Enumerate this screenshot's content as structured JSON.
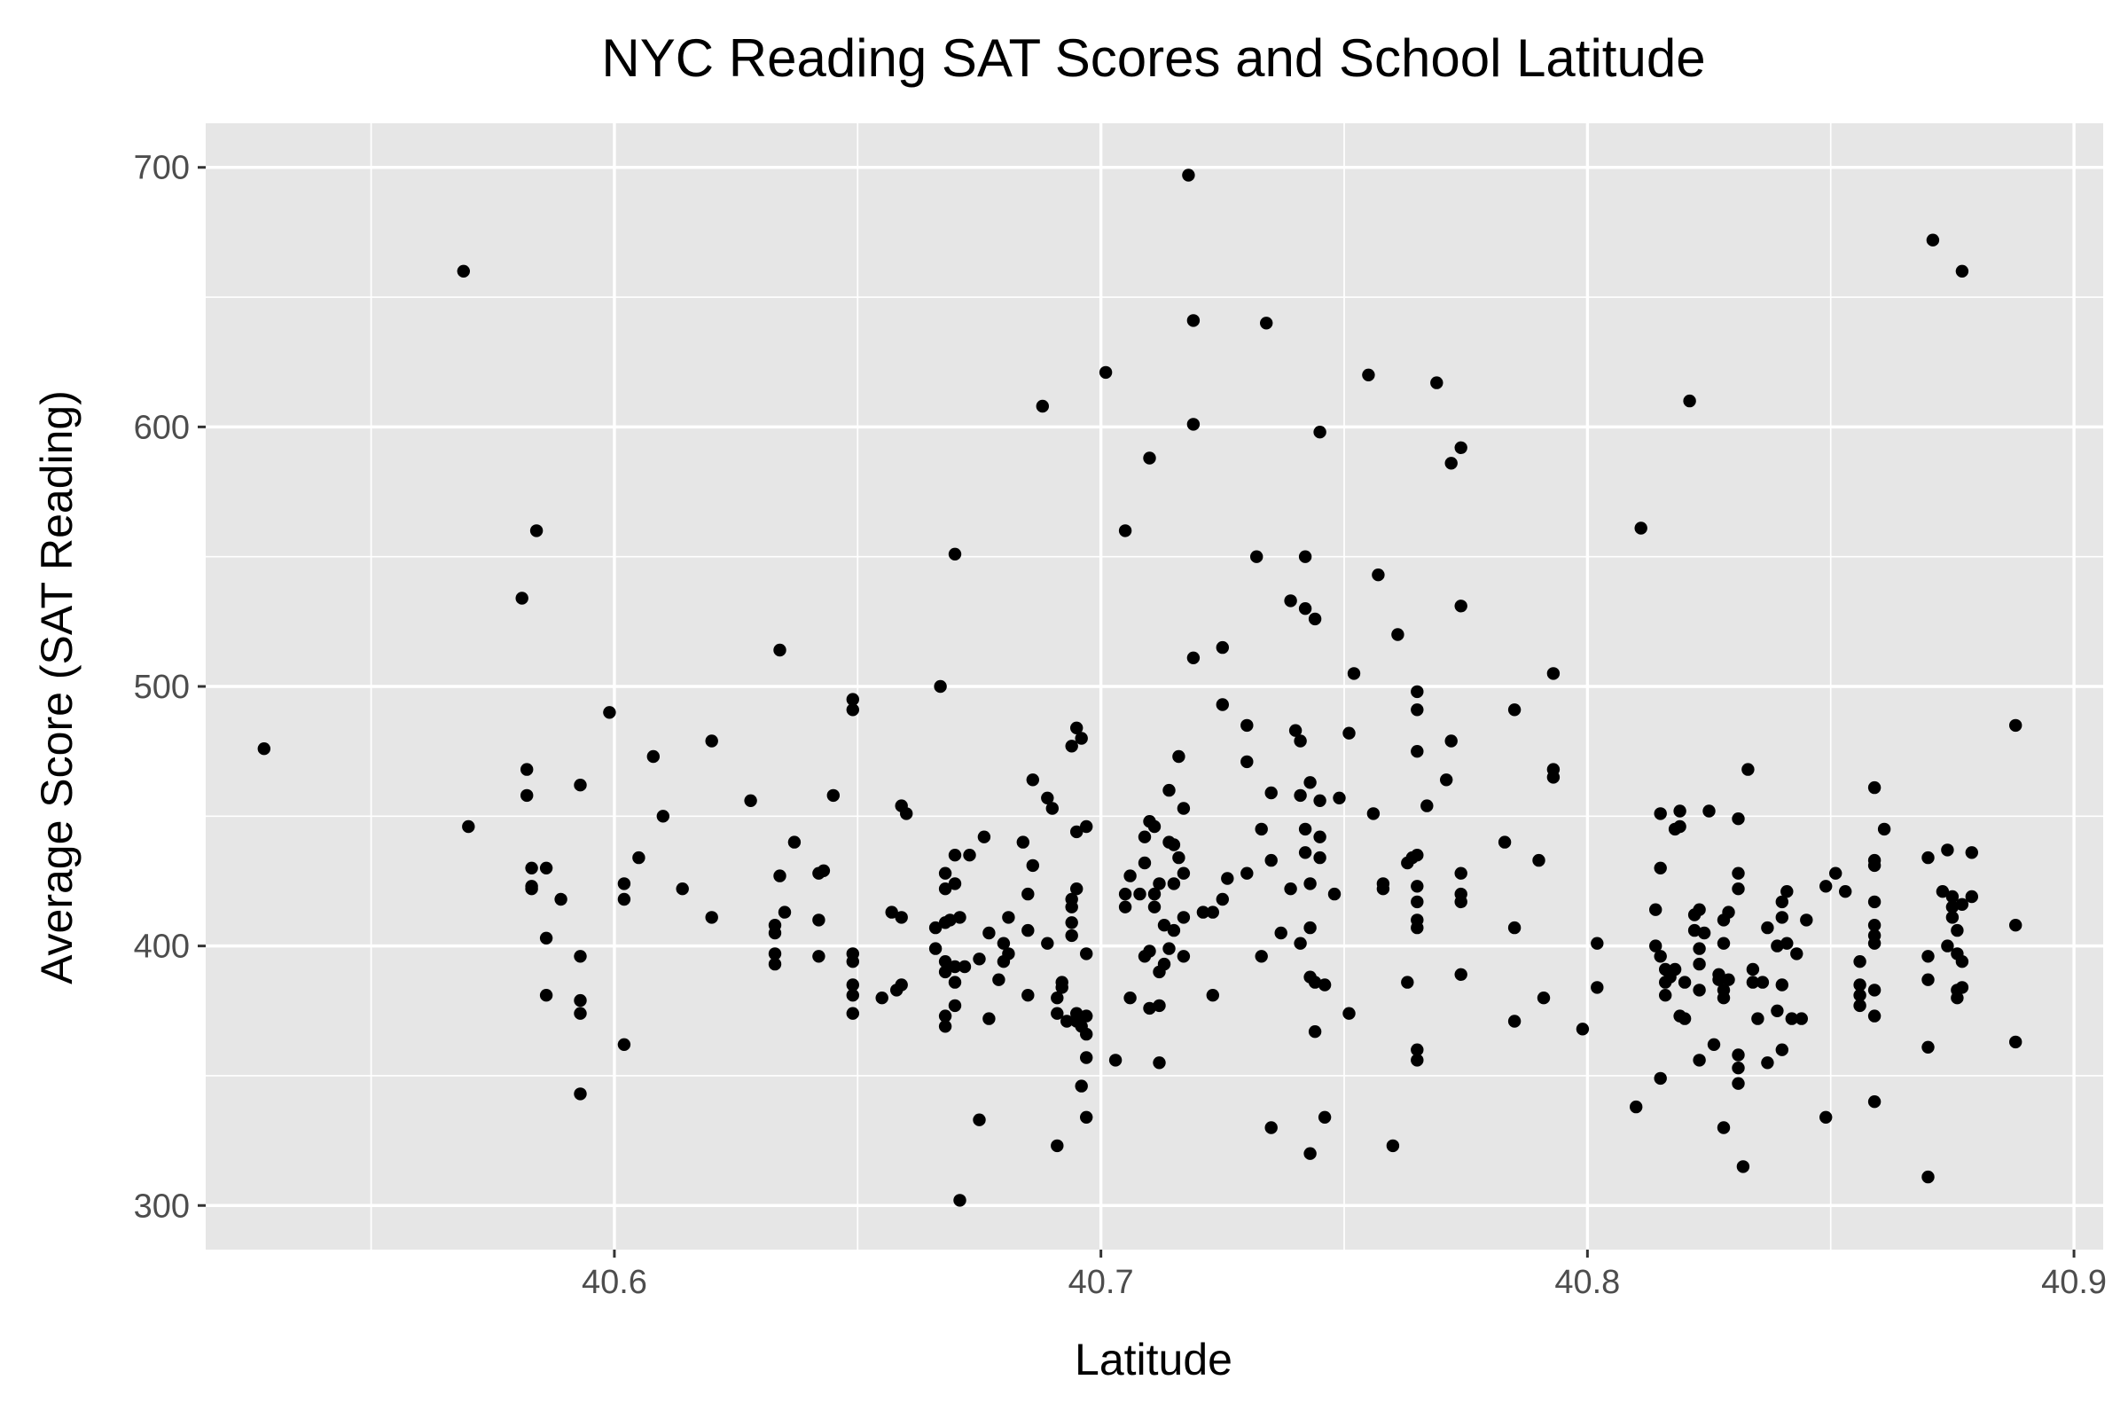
{
  "chart_data": {
    "type": "scatter",
    "title": "NYC Reading SAT Scores and School Latitude",
    "xlabel": "Latitude",
    "ylabel": "Average Score (SAT Reading)",
    "xlim": [
      40.516,
      40.906
    ],
    "ylim": [
      283,
      717
    ],
    "x_ticks": [
      "40.6",
      "40.7",
      "40.8",
      "40.9"
    ],
    "x_tick_values": [
      40.6,
      40.7,
      40.8,
      40.9
    ],
    "y_ticks": [
      "300",
      "400",
      "500",
      "600",
      "700"
    ],
    "y_tick_values": [
      300,
      400,
      500,
      600,
      700
    ],
    "grid": true,
    "panel_background": "#e6e6e6",
    "point_color": "#000000",
    "points": [
      [
        40.528,
        476
      ],
      [
        40.569,
        660
      ],
      [
        40.57,
        446
      ],
      [
        40.581,
        534
      ],
      [
        40.582,
        468
      ],
      [
        40.582,
        458
      ],
      [
        40.583,
        430
      ],
      [
        40.583,
        422
      ],
      [
        40.583,
        423
      ],
      [
        40.584,
        560
      ],
      [
        40.586,
        430
      ],
      [
        40.586,
        403
      ],
      [
        40.586,
        381
      ],
      [
        40.589,
        418
      ],
      [
        40.593,
        462
      ],
      [
        40.593,
        396
      ],
      [
        40.593,
        379
      ],
      [
        40.593,
        374
      ],
      [
        40.593,
        343
      ],
      [
        40.599,
        490
      ],
      [
        40.602,
        424
      ],
      [
        40.602,
        418
      ],
      [
        40.602,
        362
      ],
      [
        40.605,
        434
      ],
      [
        40.608,
        473
      ],
      [
        40.61,
        450
      ],
      [
        40.614,
        422
      ],
      [
        40.62,
        479
      ],
      [
        40.62,
        411
      ],
      [
        40.628,
        456
      ],
      [
        40.633,
        408
      ],
      [
        40.633,
        405
      ],
      [
        40.633,
        397
      ],
      [
        40.633,
        393
      ],
      [
        40.634,
        514
      ],
      [
        40.634,
        427
      ],
      [
        40.635,
        413
      ],
      [
        40.637,
        440
      ],
      [
        40.642,
        428
      ],
      [
        40.642,
        410
      ],
      [
        40.642,
        396
      ],
      [
        40.643,
        429
      ],
      [
        40.645,
        458
      ],
      [
        40.649,
        495
      ],
      [
        40.649,
        491
      ],
      [
        40.649,
        397
      ],
      [
        40.649,
        394
      ],
      [
        40.649,
        385
      ],
      [
        40.649,
        381
      ],
      [
        40.649,
        374
      ],
      [
        40.655,
        380
      ],
      [
        40.657,
        413
      ],
      [
        40.658,
        383
      ],
      [
        40.659,
        411
      ],
      [
        40.659,
        385
      ],
      [
        40.659,
        454
      ],
      [
        40.66,
        451
      ],
      [
        40.666,
        407
      ],
      [
        40.666,
        399
      ],
      [
        40.667,
        500
      ],
      [
        40.668,
        428
      ],
      [
        40.668,
        422
      ],
      [
        40.668,
        409
      ],
      [
        40.668,
        394
      ],
      [
        40.668,
        390
      ],
      [
        40.668,
        373
      ],
      [
        40.668,
        369
      ],
      [
        40.669,
        410
      ],
      [
        40.67,
        551
      ],
      [
        40.67,
        435
      ],
      [
        40.67,
        424
      ],
      [
        40.67,
        392
      ],
      [
        40.67,
        386
      ],
      [
        40.67,
        377
      ],
      [
        40.671,
        302
      ],
      [
        40.671,
        411
      ],
      [
        40.672,
        392
      ],
      [
        40.673,
        435
      ],
      [
        40.675,
        395
      ],
      [
        40.675,
        333
      ],
      [
        40.676,
        442
      ],
      [
        40.677,
        405
      ],
      [
        40.677,
        372
      ],
      [
        40.679,
        387
      ],
      [
        40.68,
        401
      ],
      [
        40.68,
        394
      ],
      [
        40.681,
        397
      ],
      [
        40.681,
        411
      ],
      [
        40.684,
        440
      ],
      [
        40.685,
        420
      ],
      [
        40.685,
        406
      ],
      [
        40.685,
        381
      ],
      [
        40.686,
        464
      ],
      [
        40.686,
        431
      ],
      [
        40.688,
        608
      ],
      [
        40.689,
        401
      ],
      [
        40.689,
        457
      ],
      [
        40.69,
        453
      ],
      [
        40.691,
        323
      ],
      [
        40.691,
        380
      ],
      [
        40.691,
        374
      ],
      [
        40.692,
        384
      ],
      [
        40.692,
        386
      ],
      [
        40.693,
        371
      ],
      [
        40.694,
        418
      ],
      [
        40.694,
        415
      ],
      [
        40.694,
        409
      ],
      [
        40.694,
        404
      ],
      [
        40.694,
        477
      ],
      [
        40.695,
        444
      ],
      [
        40.695,
        422
      ],
      [
        40.695,
        484
      ],
      [
        40.695,
        371
      ],
      [
        40.695,
        374
      ],
      [
        40.696,
        480
      ],
      [
        40.696,
        346
      ],
      [
        40.696,
        369
      ],
      [
        40.697,
        366
      ],
      [
        40.697,
        357
      ],
      [
        40.697,
        373
      ],
      [
        40.697,
        397
      ],
      [
        40.697,
        334
      ],
      [
        40.697,
        446
      ],
      [
        40.701,
        621
      ],
      [
        40.703,
        356
      ],
      [
        40.705,
        560
      ],
      [
        40.705,
        415
      ],
      [
        40.705,
        420
      ],
      [
        40.706,
        380
      ],
      [
        40.706,
        427
      ],
      [
        40.708,
        420
      ],
      [
        40.709,
        432
      ],
      [
        40.709,
        442
      ],
      [
        40.709,
        396
      ],
      [
        40.71,
        588
      ],
      [
        40.71,
        448
      ],
      [
        40.71,
        398
      ],
      [
        40.71,
        376
      ],
      [
        40.711,
        415
      ],
      [
        40.711,
        420
      ],
      [
        40.711,
        446
      ],
      [
        40.712,
        424
      ],
      [
        40.712,
        390
      ],
      [
        40.712,
        355
      ],
      [
        40.712,
        377
      ],
      [
        40.713,
        393
      ],
      [
        40.713,
        408
      ],
      [
        40.714,
        460
      ],
      [
        40.714,
        440
      ],
      [
        40.714,
        399
      ],
      [
        40.715,
        406
      ],
      [
        40.715,
        439
      ],
      [
        40.715,
        424
      ],
      [
        40.716,
        473
      ],
      [
        40.716,
        434
      ],
      [
        40.717,
        453
      ],
      [
        40.717,
        428
      ],
      [
        40.717,
        411
      ],
      [
        40.717,
        396
      ],
      [
        40.718,
        697
      ],
      [
        40.719,
        641
      ],
      [
        40.719,
        601
      ],
      [
        40.719,
        511
      ],
      [
        40.721,
        413
      ],
      [
        40.723,
        413
      ],
      [
        40.723,
        381
      ],
      [
        40.725,
        515
      ],
      [
        40.725,
        493
      ],
      [
        40.725,
        418
      ],
      [
        40.726,
        426
      ],
      [
        40.73,
        485
      ],
      [
        40.73,
        471
      ],
      [
        40.73,
        428
      ],
      [
        40.732,
        550
      ],
      [
        40.733,
        445
      ],
      [
        40.733,
        396
      ],
      [
        40.734,
        640
      ],
      [
        40.735,
        330
      ],
      [
        40.735,
        459
      ],
      [
        40.735,
        433
      ],
      [
        40.737,
        405
      ],
      [
        40.739,
        533
      ],
      [
        40.739,
        422
      ],
      [
        40.74,
        483
      ],
      [
        40.741,
        401
      ],
      [
        40.741,
        479
      ],
      [
        40.741,
        458
      ],
      [
        40.742,
        550
      ],
      [
        40.742,
        530
      ],
      [
        40.742,
        445
      ],
      [
        40.742,
        436
      ],
      [
        40.743,
        424
      ],
      [
        40.743,
        407
      ],
      [
        40.743,
        388
      ],
      [
        40.743,
        320
      ],
      [
        40.743,
        463
      ],
      [
        40.744,
        526
      ],
      [
        40.744,
        367
      ],
      [
        40.744,
        386
      ],
      [
        40.745,
        598
      ],
      [
        40.745,
        456
      ],
      [
        40.745,
        442
      ],
      [
        40.745,
        434
      ],
      [
        40.746,
        385
      ],
      [
        40.746,
        334
      ],
      [
        40.748,
        420
      ],
      [
        40.749,
        457
      ],
      [
        40.751,
        482
      ],
      [
        40.751,
        374
      ],
      [
        40.752,
        505
      ],
      [
        40.755,
        620
      ],
      [
        40.756,
        451
      ],
      [
        40.757,
        543
      ],
      [
        40.758,
        424
      ],
      [
        40.758,
        422
      ],
      [
        40.76,
        323
      ],
      [
        40.761,
        520
      ],
      [
        40.763,
        386
      ],
      [
        40.763,
        432
      ],
      [
        40.764,
        434
      ],
      [
        40.765,
        498
      ],
      [
        40.765,
        491
      ],
      [
        40.765,
        475
      ],
      [
        40.765,
        435
      ],
      [
        40.765,
        423
      ],
      [
        40.765,
        417
      ],
      [
        40.765,
        410
      ],
      [
        40.765,
        407
      ],
      [
        40.765,
        360
      ],
      [
        40.765,
        356
      ],
      [
        40.767,
        454
      ],
      [
        40.769,
        617
      ],
      [
        40.771,
        464
      ],
      [
        40.772,
        586
      ],
      [
        40.772,
        479
      ],
      [
        40.774,
        592
      ],
      [
        40.774,
        531
      ],
      [
        40.774,
        428
      ],
      [
        40.774,
        420
      ],
      [
        40.774,
        417
      ],
      [
        40.774,
        389
      ],
      [
        40.783,
        440
      ],
      [
        40.785,
        491
      ],
      [
        40.785,
        407
      ],
      [
        40.785,
        371
      ],
      [
        40.79,
        433
      ],
      [
        40.791,
        380
      ],
      [
        40.793,
        505
      ],
      [
        40.793,
        465
      ],
      [
        40.793,
        468
      ],
      [
        40.799,
        368
      ],
      [
        40.802,
        401
      ],
      [
        40.802,
        384
      ],
      [
        40.81,
        338
      ],
      [
        40.811,
        561
      ],
      [
        40.814,
        400
      ],
      [
        40.814,
        414
      ],
      [
        40.815,
        451
      ],
      [
        40.815,
        430
      ],
      [
        40.815,
        396
      ],
      [
        40.815,
        349
      ],
      [
        40.816,
        391
      ],
      [
        40.816,
        386
      ],
      [
        40.816,
        381
      ],
      [
        40.817,
        388
      ],
      [
        40.818,
        445
      ],
      [
        40.818,
        391
      ],
      [
        40.819,
        446
      ],
      [
        40.819,
        373
      ],
      [
        40.819,
        452
      ],
      [
        40.82,
        372
      ],
      [
        40.82,
        386
      ],
      [
        40.821,
        610
      ],
      [
        40.822,
        412
      ],
      [
        40.822,
        406
      ],
      [
        40.823,
        414
      ],
      [
        40.823,
        399
      ],
      [
        40.823,
        393
      ],
      [
        40.823,
        383
      ],
      [
        40.823,
        356
      ],
      [
        40.824,
        405
      ],
      [
        40.825,
        452
      ],
      [
        40.826,
        362
      ],
      [
        40.827,
        387
      ],
      [
        40.827,
        389
      ],
      [
        40.828,
        410
      ],
      [
        40.828,
        401
      ],
      [
        40.828,
        383
      ],
      [
        40.828,
        380
      ],
      [
        40.828,
        330
      ],
      [
        40.829,
        413
      ],
      [
        40.829,
        387
      ],
      [
        40.831,
        449
      ],
      [
        40.831,
        428
      ],
      [
        40.831,
        422
      ],
      [
        40.831,
        358
      ],
      [
        40.831,
        353
      ],
      [
        40.831,
        347
      ],
      [
        40.832,
        315
      ],
      [
        40.833,
        468
      ],
      [
        40.834,
        391
      ],
      [
        40.834,
        386
      ],
      [
        40.835,
        372
      ],
      [
        40.836,
        386
      ],
      [
        40.837,
        407
      ],
      [
        40.837,
        355
      ],
      [
        40.839,
        400
      ],
      [
        40.839,
        375
      ],
      [
        40.84,
        417
      ],
      [
        40.84,
        411
      ],
      [
        40.84,
        385
      ],
      [
        40.84,
        360
      ],
      [
        40.841,
        421
      ],
      [
        40.841,
        401
      ],
      [
        40.842,
        372
      ],
      [
        40.843,
        397
      ],
      [
        40.844,
        372
      ],
      [
        40.845,
        410
      ],
      [
        40.849,
        423
      ],
      [
        40.849,
        334
      ],
      [
        40.851,
        428
      ],
      [
        40.853,
        421
      ],
      [
        40.856,
        394
      ],
      [
        40.856,
        385
      ],
      [
        40.856,
        381
      ],
      [
        40.856,
        377
      ],
      [
        40.859,
        461
      ],
      [
        40.859,
        433
      ],
      [
        40.859,
        431
      ],
      [
        40.859,
        417
      ],
      [
        40.859,
        408
      ],
      [
        40.859,
        404
      ],
      [
        40.859,
        401
      ],
      [
        40.859,
        383
      ],
      [
        40.859,
        373
      ],
      [
        40.859,
        340
      ],
      [
        40.861,
        445
      ],
      [
        40.87,
        434
      ],
      [
        40.87,
        396
      ],
      [
        40.87,
        387
      ],
      [
        40.87,
        361
      ],
      [
        40.87,
        311
      ],
      [
        40.871,
        672
      ],
      [
        40.873,
        421
      ],
      [
        40.874,
        400
      ],
      [
        40.874,
        437
      ],
      [
        40.875,
        419
      ],
      [
        40.875,
        411
      ],
      [
        40.875,
        415
      ],
      [
        40.876,
        383
      ],
      [
        40.876,
        380
      ],
      [
        40.876,
        397
      ],
      [
        40.876,
        406
      ],
      [
        40.877,
        660
      ],
      [
        40.877,
        416
      ],
      [
        40.877,
        384
      ],
      [
        40.877,
        394
      ],
      [
        40.879,
        419
      ],
      [
        40.879,
        436
      ],
      [
        40.888,
        485
      ],
      [
        40.888,
        408
      ],
      [
        40.888,
        363
      ]
    ]
  }
}
